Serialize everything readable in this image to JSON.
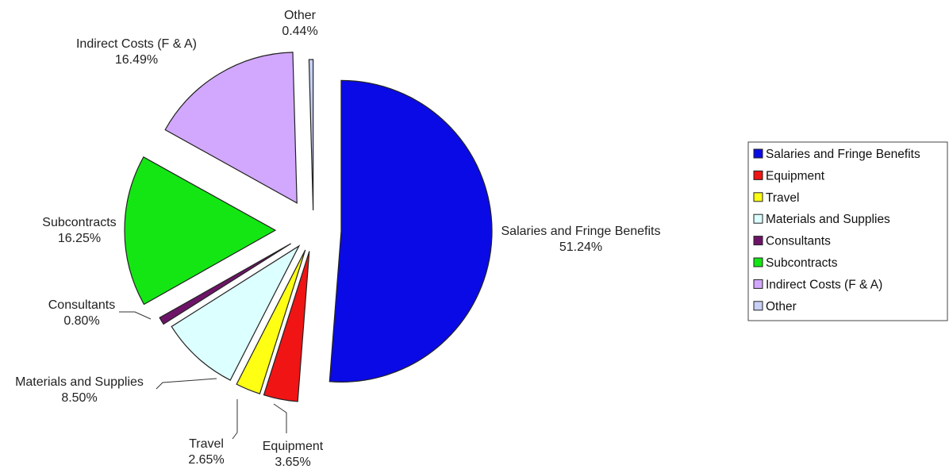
{
  "chart_data": {
    "type": "pie",
    "title": "",
    "legend_position": "right",
    "slices": [
      {
        "label": "Salaries and Fringe Benefits",
        "value": 51.24,
        "value_label": "51.24%",
        "color": "#0a0ae6"
      },
      {
        "label": "Equipment",
        "value": 3.65,
        "value_label": "3.65%",
        "color": "#f01414"
      },
      {
        "label": "Travel",
        "value": 2.65,
        "value_label": "2.65%",
        "color": "#ffff14"
      },
      {
        "label": "Materials and Supplies",
        "value": 8.5,
        "value_label": "8.50%",
        "color": "#dcffff"
      },
      {
        "label": "Consultants",
        "value": 0.8,
        "value_label": "0.80%",
        "color": "#6e1468"
      },
      {
        "label": "Subcontracts",
        "value": 16.25,
        "value_label": "16.25%",
        "color": "#14e614"
      },
      {
        "label": "Indirect Costs (F & A)",
        "value": 16.49,
        "value_label": "16.49%",
        "color": "#d2a8ff"
      },
      {
        "label": "Other",
        "value": 0.44,
        "value_label": "0.44%",
        "color": "#c8d0f5"
      }
    ]
  }
}
